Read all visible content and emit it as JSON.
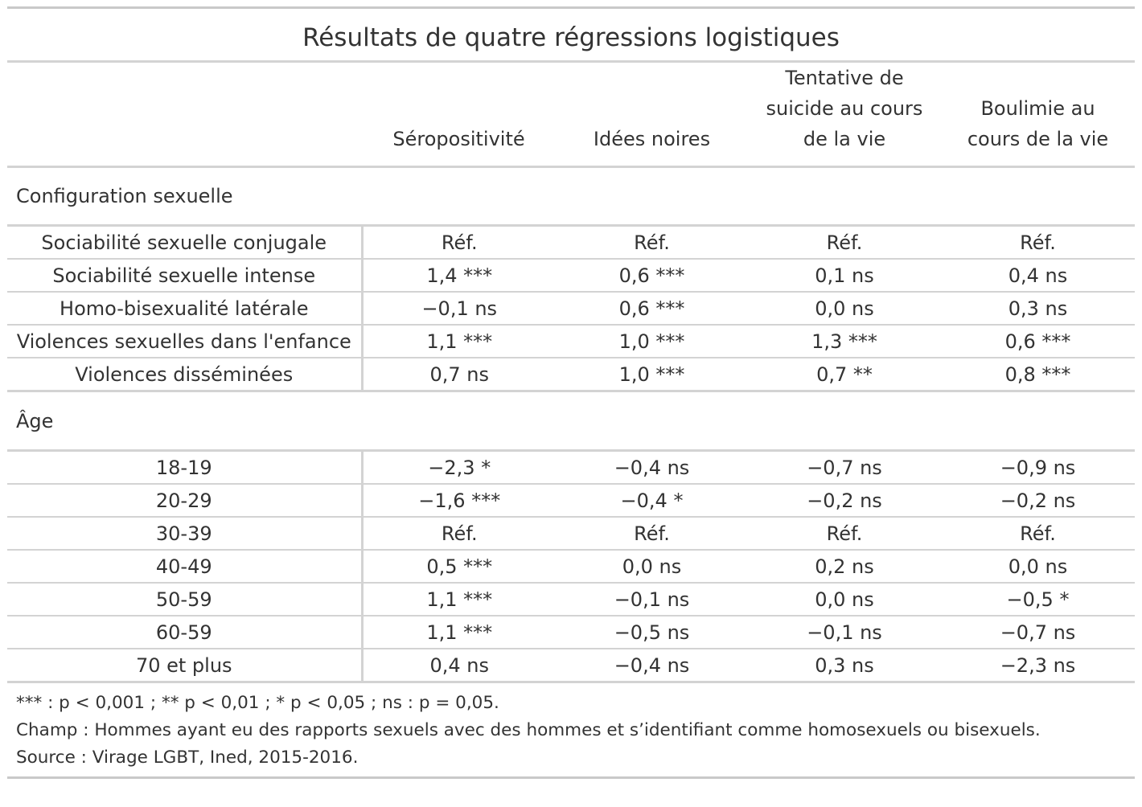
{
  "chart_data": {
    "type": "table",
    "title": "Résultats de quatre régressions logistiques",
    "columns": [
      "",
      "Séropositivité",
      "Idées noires",
      "Tentative de suicide au cours de la vie",
      "Boulimie au cours de la vie"
    ],
    "groups": [
      {
        "label": "Configuration sexuelle",
        "rows": [
          {
            "label": "Sociabilité sexuelle conjugale",
            "cells": [
              "Réf.",
              "Réf.",
              "Réf.",
              "Réf."
            ]
          },
          {
            "label": "Sociabilité sexuelle intense",
            "cells": [
              "1,4 ***",
              "0,6 ***",
              "0,1 ns",
              "0,4 ns"
            ]
          },
          {
            "label": "Homo-bisexualité latérale",
            "cells": [
              "−0,1 ns",
              "0,6 ***",
              "0,0 ns",
              "0,3 ns"
            ]
          },
          {
            "label": "Violences sexuelles dans l'enfance",
            "cells": [
              "1,1 ***",
              "1,0 ***",
              "1,3 ***",
              "0,6 ***"
            ]
          },
          {
            "label": "Violences disséminées",
            "cells": [
              "0,7 ns",
              "1,0 ***",
              "0,7 **",
              "0,8 ***"
            ]
          }
        ]
      },
      {
        "label": "Âge",
        "rows": [
          {
            "label": "18-19",
            "cells": [
              "−2,3 *",
              "−0,4 ns",
              "−0,7 ns",
              "−0,9 ns"
            ]
          },
          {
            "label": "20-29",
            "cells": [
              "−1,6 ***",
              "−0,4 *",
              "−0,2 ns",
              "−0,2 ns"
            ]
          },
          {
            "label": "30-39",
            "cells": [
              "Réf.",
              "Réf.",
              "Réf.",
              "Réf."
            ]
          },
          {
            "label": "40-49",
            "cells": [
              "0,5 ***",
              "0,0 ns",
              "0,2 ns",
              "0,0 ns"
            ]
          },
          {
            "label": "50-59",
            "cells": [
              "1,1 ***",
              "−0,1 ns",
              "0,0 ns",
              "−0,5 *"
            ]
          },
          {
            "label": "60-59",
            "cells": [
              "1,1 ***",
              "−0,5 ns",
              "−0,1 ns",
              "−0,7 ns"
            ]
          },
          {
            "label": "70 et plus",
            "cells": [
              "0,4 ns",
              "−0,4 ns",
              "0,3 ns",
              "−2,3 ns"
            ]
          }
        ]
      }
    ],
    "notes": [
      "*** : p < 0,001 ; ** p < 0,01 ; * p < 0,05 ; ns : p = 0,05.",
      "Champ : Hommes ayant eu des rapports sexuels avec des hommes et s’identifiant comme homosexuels ou bisexuels.",
      "Source : Virage LGBT, Ined, 2015-2016."
    ]
  },
  "colors": {
    "text": "#333333",
    "rule": "#d3d3d3",
    "outer_rule": "#c9c9c9",
    "background": "#ffffff"
  }
}
